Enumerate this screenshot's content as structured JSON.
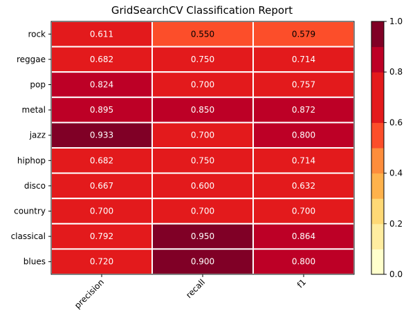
{
  "chart_data": {
    "type": "heatmap",
    "title": "GridSearchCV Classification Report",
    "columns": [
      "precision",
      "recall",
      "f1"
    ],
    "rows": [
      "rock",
      "reggae",
      "pop",
      "metal",
      "jazz",
      "hiphop",
      "disco",
      "country",
      "classical",
      "blues"
    ],
    "values": [
      [
        0.611,
        0.55,
        0.579
      ],
      [
        0.682,
        0.75,
        0.714
      ],
      [
        0.824,
        0.7,
        0.757
      ],
      [
        0.895,
        0.85,
        0.872
      ],
      [
        0.933,
        0.7,
        0.8
      ],
      [
        0.682,
        0.75,
        0.714
      ],
      [
        0.667,
        0.6,
        0.632
      ],
      [
        0.7,
        0.7,
        0.7
      ],
      [
        0.792,
        0.95,
        0.864
      ],
      [
        0.72,
        0.9,
        0.8
      ]
    ],
    "colorbar": {
      "range": [
        0.0,
        1.0
      ],
      "ticks": [
        "0.0",
        "0.2",
        "0.4",
        "0.6",
        "0.8",
        "1.0"
      ],
      "colormap": "YlOrRd",
      "bins": 10
    },
    "colors": [
      "#ffffcc",
      "#ffeda0",
      "#fed976",
      "#feb24c",
      "#fd8d3c",
      "#fc4e2a",
      "#e31a1c",
      "#e31a1c",
      "#bd0026",
      "#800026"
    ]
  }
}
